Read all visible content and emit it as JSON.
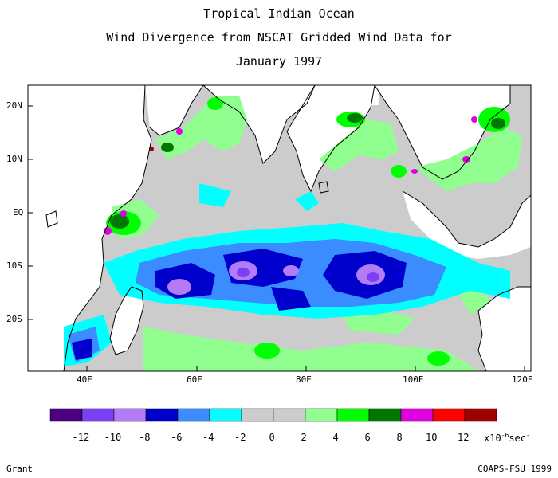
{
  "title": {
    "line1": "Tropical Indian Ocean",
    "line2": "Wind Divergence from NSCAT Gridded Wind Data for",
    "line3": "January 1997"
  },
  "axes": {
    "lat_labels": [
      "20N",
      "10N",
      "EQ",
      "10S",
      "20S"
    ],
    "lon_labels": [
      "40E",
      "60E",
      "80E",
      "100E",
      "120E"
    ]
  },
  "colorbar": {
    "colors": [
      "#4b0082",
      "#7b3ff5",
      "#b37bf5",
      "#0000cd",
      "#3a8cff",
      "#00ffff",
      "#cccccc",
      "#cccccc",
      "#90ff90",
      "#00ff00",
      "#007800",
      "#e000e0",
      "#ff0000",
      "#a00000"
    ],
    "labels": [
      "-12",
      "-10",
      "-8",
      "-6",
      "-4",
      "-2",
      "0",
      "2",
      "4",
      "6",
      "8",
      "10",
      "12"
    ],
    "unit": "x10",
    "unit_exp": "-6",
    "unit_tail": "sec",
    "unit_exp2": "-1"
  },
  "footer": {
    "left": "Grant",
    "right": "COAPS-FSU 1999"
  }
}
